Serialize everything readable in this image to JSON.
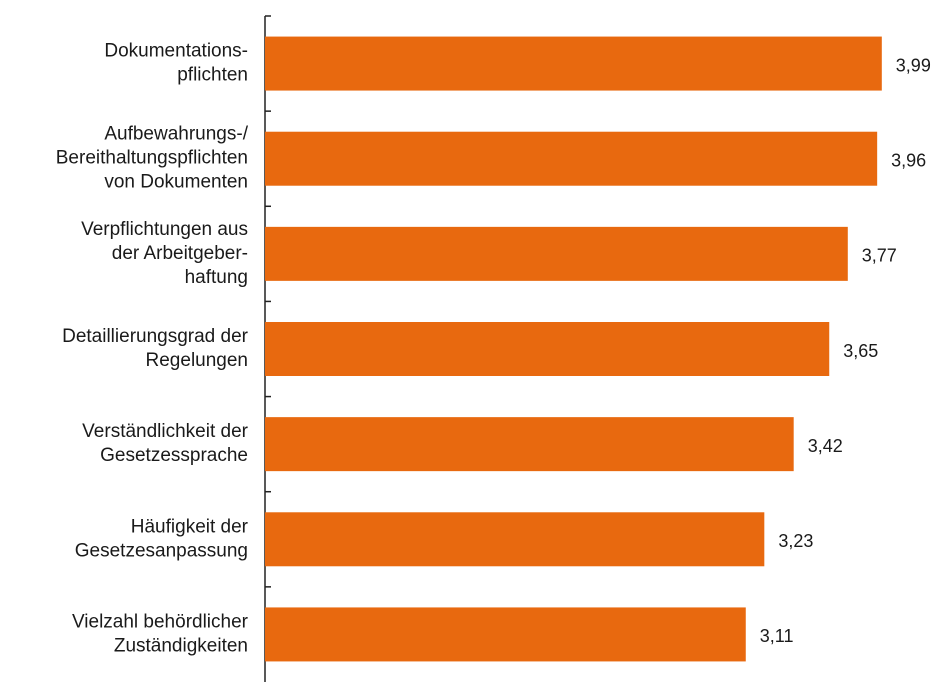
{
  "chart_data": {
    "type": "barh",
    "categories": [
      [
        "Dokumentations-",
        "pflichten"
      ],
      [
        "Aufbewahrungs-/",
        "Bereithaltungspflichten",
        "von Dokumenten"
      ],
      [
        "Verpflichtungen aus",
        "der Arbeitgeber-",
        "haftung"
      ],
      [
        "Detaillierungsgrad der",
        "Regelungen"
      ],
      [
        "Verständlichkeit der",
        "Gesetzessprache"
      ],
      [
        "Häufigkeit der",
        "Gesetzesanpassung"
      ],
      [
        "Vielzahl behördlicher",
        "Zuständigkeiten"
      ]
    ],
    "values": [
      3.99,
      3.96,
      3.77,
      3.65,
      3.42,
      3.23,
      3.11
    ],
    "value_labels": [
      "3,99",
      "3,96",
      "3,77",
      "3,65",
      "3,42",
      "3,23",
      "3,11"
    ],
    "color": "#e8690f",
    "xlim": [
      0,
      4.36
    ]
  }
}
